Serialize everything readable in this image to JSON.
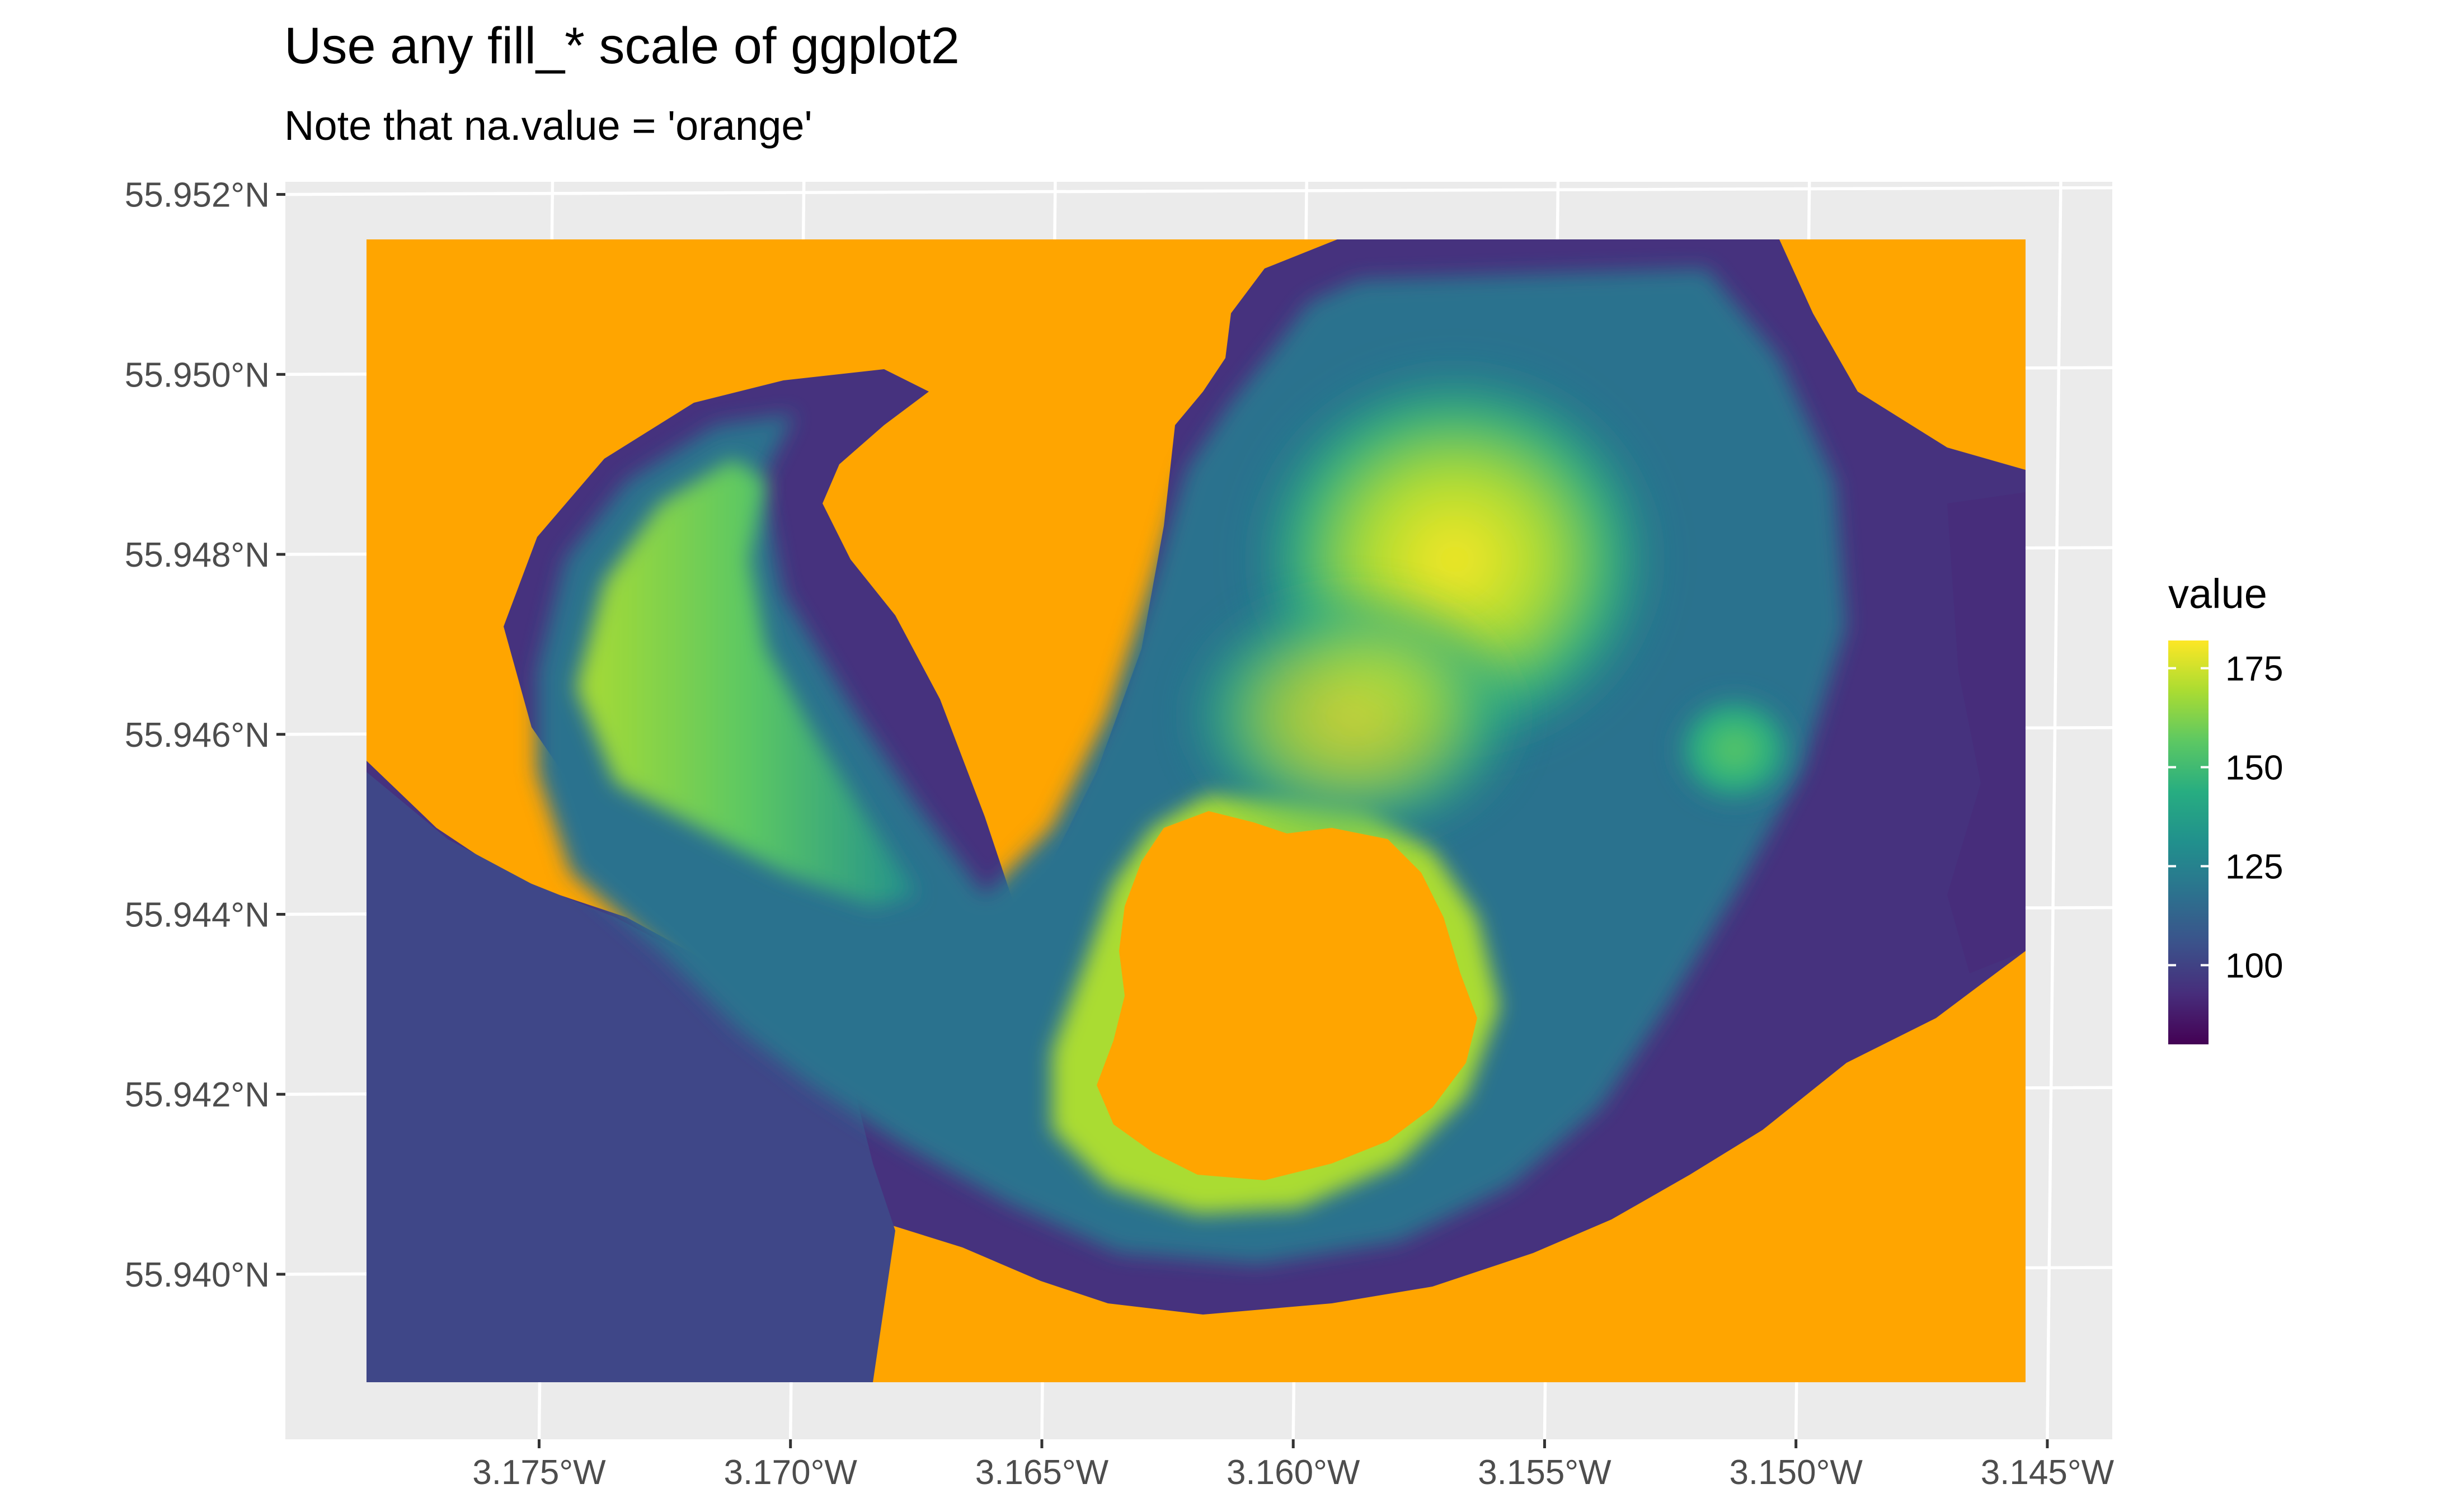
{
  "chart_data": {
    "type": "heatmap",
    "title": "Use any fill_* scale of ggplot2",
    "subtitle": "Note that na.value = 'orange'",
    "xlabel": "",
    "ylabel": "",
    "x_ticks": [
      {
        "value": -3.175,
        "label": "3.175°W"
      },
      {
        "value": -3.17,
        "label": "3.170°W"
      },
      {
        "value": -3.165,
        "label": "3.165°W"
      },
      {
        "value": -3.16,
        "label": "3.160°W"
      },
      {
        "value": -3.155,
        "label": "3.155°W"
      },
      {
        "value": -3.15,
        "label": "3.150°W"
      },
      {
        "value": -3.145,
        "label": "3.145°W"
      }
    ],
    "y_ticks": [
      {
        "value": 55.952,
        "label": "55.952°N"
      },
      {
        "value": 55.95,
        "label": "55.950°N"
      },
      {
        "value": 55.948,
        "label": "55.948°N"
      },
      {
        "value": 55.946,
        "label": "55.946°N"
      },
      {
        "value": 55.944,
        "label": "55.944°N"
      },
      {
        "value": 55.942,
        "label": "55.942°N"
      },
      {
        "value": 55.94,
        "label": "55.940°N"
      }
    ],
    "xlim": [
      -3.1785,
      -3.1455
    ],
    "ylim": [
      55.9388,
      55.9515
    ],
    "na_value_color": "orange",
    "palette": "viridis",
    "legend": {
      "title": "value",
      "position": "right",
      "range": [
        80,
        182
      ],
      "breaks": [
        {
          "value": 100,
          "label": "100"
        },
        {
          "value": 125,
          "label": "125"
        },
        {
          "value": 150,
          "label": "150"
        },
        {
          "value": 175,
          "label": "175"
        }
      ]
    },
    "colors": {
      "panel_bg": "#ebebeb",
      "grid": "#ffffff",
      "na": "#ffa500",
      "viridis": [
        "#440154",
        "#472d7b",
        "#3b528b",
        "#2c728e",
        "#21908d",
        "#27ad81",
        "#5cc863",
        "#aadc32",
        "#fde725"
      ]
    }
  }
}
